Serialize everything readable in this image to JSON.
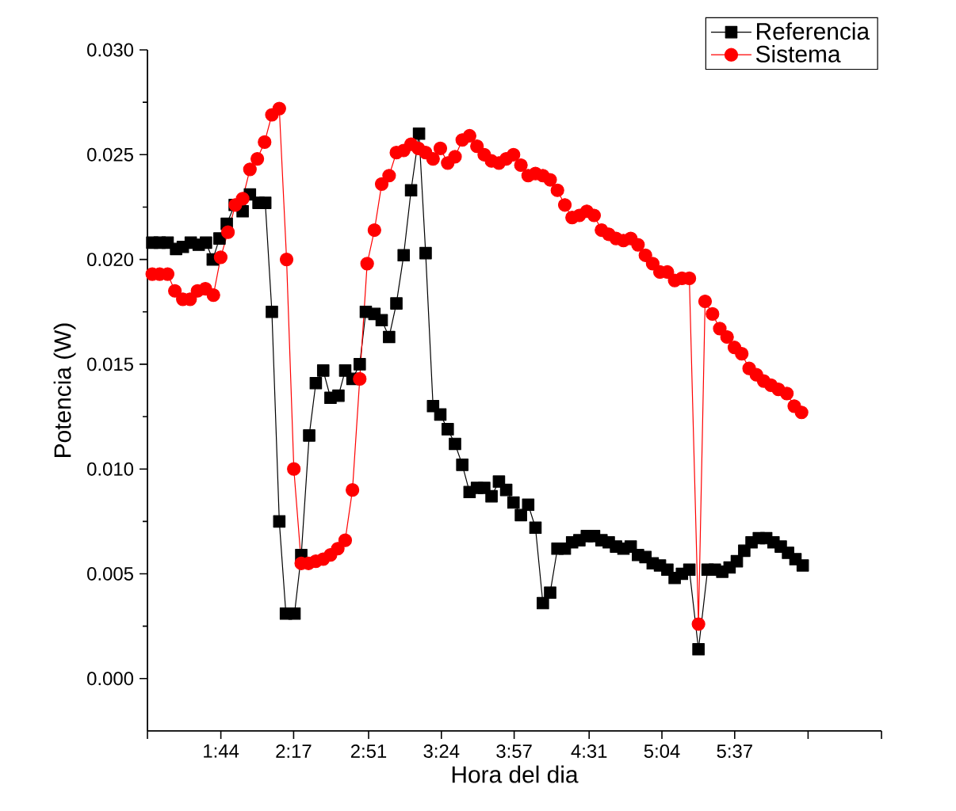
{
  "chart_data": {
    "type": "line",
    "xlabel": "Hora del dia",
    "ylabel": "Potencia (W)",
    "xlim": [
      1.1786,
      6.7262
    ],
    "ylim": [
      -0.0025,
      0.03
    ],
    "xticks": [
      {
        "value": 1.1786,
        "label": null
      },
      {
        "value": 1.7333,
        "label": "1:44"
      },
      {
        "value": 2.2833,
        "label": "2:17"
      },
      {
        "value": 2.85,
        "label": "2:51"
      },
      {
        "value": 3.4,
        "label": "3:24"
      },
      {
        "value": 3.95,
        "label": "3:57"
      },
      {
        "value": 4.5167,
        "label": "4:31"
      },
      {
        "value": 5.0667,
        "label": "5:04"
      },
      {
        "value": 5.6167,
        "label": "5:37"
      },
      {
        "value": 6.1714,
        "label": null
      },
      {
        "value": 6.7262,
        "label": null
      }
    ],
    "yticks": [
      {
        "value": 0,
        "label": "0.000"
      },
      {
        "value": 0.005,
        "label": "0.005"
      },
      {
        "value": 0.01,
        "label": "0.010"
      },
      {
        "value": 0.015,
        "label": "0.015"
      },
      {
        "value": 0.02,
        "label": "0.020"
      },
      {
        "value": 0.025,
        "label": "0.025"
      },
      {
        "value": 0.03,
        "label": "0.030"
      }
    ],
    "grid": false,
    "legend": "top right",
    "line_style": "solid",
    "series": [
      {
        "name": "Referencia",
        "color": "#000000",
        "marker": "square",
        "x": [
          1.215,
          1.271,
          1.331,
          1.395,
          1.446,
          1.506,
          1.566,
          1.621,
          1.672,
          1.723,
          1.778,
          1.838,
          1.898,
          1.953,
          2.018,
          2.069,
          2.119,
          2.175,
          2.225,
          2.29,
          2.341,
          2.401,
          2.451,
          2.507,
          2.562,
          2.622,
          2.673,
          2.728,
          2.783,
          2.829,
          2.894,
          2.949,
          3.005,
          3.06,
          3.115,
          3.171,
          3.231,
          3.281,
          3.337,
          3.392,
          3.448,
          3.503,
          3.558,
          3.613,
          3.669,
          3.724,
          3.779,
          3.835,
          3.89,
          3.945,
          4.001,
          4.056,
          4.111,
          4.167,
          4.222,
          4.277,
          4.333,
          4.388,
          4.443,
          4.499,
          4.554,
          4.61,
          4.665,
          4.72,
          4.776,
          4.831,
          4.886,
          4.942,
          4.997,
          5.052,
          5.108,
          5.163,
          5.218,
          5.274,
          5.343,
          5.412,
          5.467,
          5.523,
          5.578,
          5.633,
          5.689,
          5.744,
          5.799,
          5.855,
          5.91,
          5.965,
          6.02,
          6.076,
          6.131
        ],
        "values": [
          0.0208,
          0.0208,
          0.0208,
          0.0205,
          0.0206,
          0.0208,
          0.0207,
          0.0208,
          0.02,
          0.021,
          0.0217,
          0.0226,
          0.0223,
          0.0231,
          0.0227,
          0.0227,
          0.0175,
          0.0075,
          0.0031,
          0.0031,
          0.0059,
          0.0116,
          0.0141,
          0.0147,
          0.0134,
          0.0135,
          0.0147,
          0.0143,
          0.015,
          0.0175,
          0.0174,
          0.0171,
          0.0163,
          0.0179,
          0.0202,
          0.0233,
          0.026,
          0.0203,
          0.013,
          0.0126,
          0.0119,
          0.0112,
          0.0102,
          0.0089,
          0.0091,
          0.0091,
          0.0087,
          0.0094,
          0.009,
          0.0084,
          0.0078,
          0.0083,
          0.0072,
          0.0036,
          0.0041,
          0.0062,
          0.0062,
          0.0065,
          0.0066,
          0.0068,
          0.0068,
          0.0066,
          0.0065,
          0.0063,
          0.0062,
          0.0063,
          0.0059,
          0.0058,
          0.0055,
          0.0054,
          0.0052,
          0.0048,
          0.005,
          0.0052,
          0.0014,
          0.0052,
          0.0052,
          0.0051,
          0.0053,
          0.0056,
          0.0061,
          0.0065,
          0.0067,
          0.0067,
          0.0065,
          0.0063,
          0.006,
          0.0057,
          0.0054
        ]
      },
      {
        "name": "Sistema",
        "color": "#ff0000",
        "marker": "circle",
        "x": [
          1.215,
          1.271,
          1.331,
          1.386,
          1.446,
          1.501,
          1.557,
          1.617,
          1.677,
          1.732,
          1.787,
          1.843,
          1.898,
          1.953,
          2.009,
          2.064,
          2.119,
          2.175,
          2.23,
          2.285,
          2.341,
          2.396,
          2.451,
          2.507,
          2.562,
          2.617,
          2.673,
          2.728,
          2.783,
          2.839,
          2.894,
          2.949,
          3.005,
          3.06,
          3.115,
          3.171,
          3.226,
          3.281,
          3.337,
          3.392,
          3.448,
          3.503,
          3.558,
          3.613,
          3.669,
          3.724,
          3.779,
          3.835,
          3.89,
          3.945,
          4.001,
          4.056,
          4.111,
          4.167,
          4.222,
          4.277,
          4.333,
          4.388,
          4.443,
          4.499,
          4.554,
          4.61,
          4.665,
          4.72,
          4.776,
          4.831,
          4.886,
          4.942,
          4.997,
          5.052,
          5.108,
          5.163,
          5.218,
          5.274,
          5.343,
          5.393,
          5.449,
          5.504,
          5.559,
          5.615,
          5.67,
          5.726,
          5.781,
          5.836,
          5.891,
          5.947,
          6.011,
          6.067,
          6.122
        ],
        "values": [
          0.0193,
          0.0193,
          0.0193,
          0.0185,
          0.0181,
          0.0181,
          0.0185,
          0.0186,
          0.0183,
          0.0201,
          0.0213,
          0.0226,
          0.0229,
          0.0243,
          0.0248,
          0.0256,
          0.0269,
          0.0272,
          0.02,
          0.01,
          0.0055,
          0.0055,
          0.0056,
          0.0057,
          0.0059,
          0.0062,
          0.0066,
          0.009,
          0.0143,
          0.0198,
          0.0214,
          0.0236,
          0.024,
          0.0251,
          0.0252,
          0.0255,
          0.0253,
          0.0251,
          0.0248,
          0.0253,
          0.0246,
          0.0249,
          0.0257,
          0.0259,
          0.0254,
          0.025,
          0.0247,
          0.0246,
          0.0248,
          0.025,
          0.0245,
          0.024,
          0.0241,
          0.024,
          0.0238,
          0.0233,
          0.0226,
          0.022,
          0.0221,
          0.0223,
          0.0221,
          0.0214,
          0.0212,
          0.021,
          0.0209,
          0.021,
          0.0207,
          0.0202,
          0.0198,
          0.0194,
          0.0194,
          0.019,
          0.0191,
          0.0191,
          0.0026,
          0.018,
          0.0174,
          0.0167,
          0.0163,
          0.0158,
          0.0155,
          0.0148,
          0.0145,
          0.0142,
          0.014,
          0.0138,
          0.0136,
          0.013,
          0.0127
        ]
      }
    ]
  }
}
